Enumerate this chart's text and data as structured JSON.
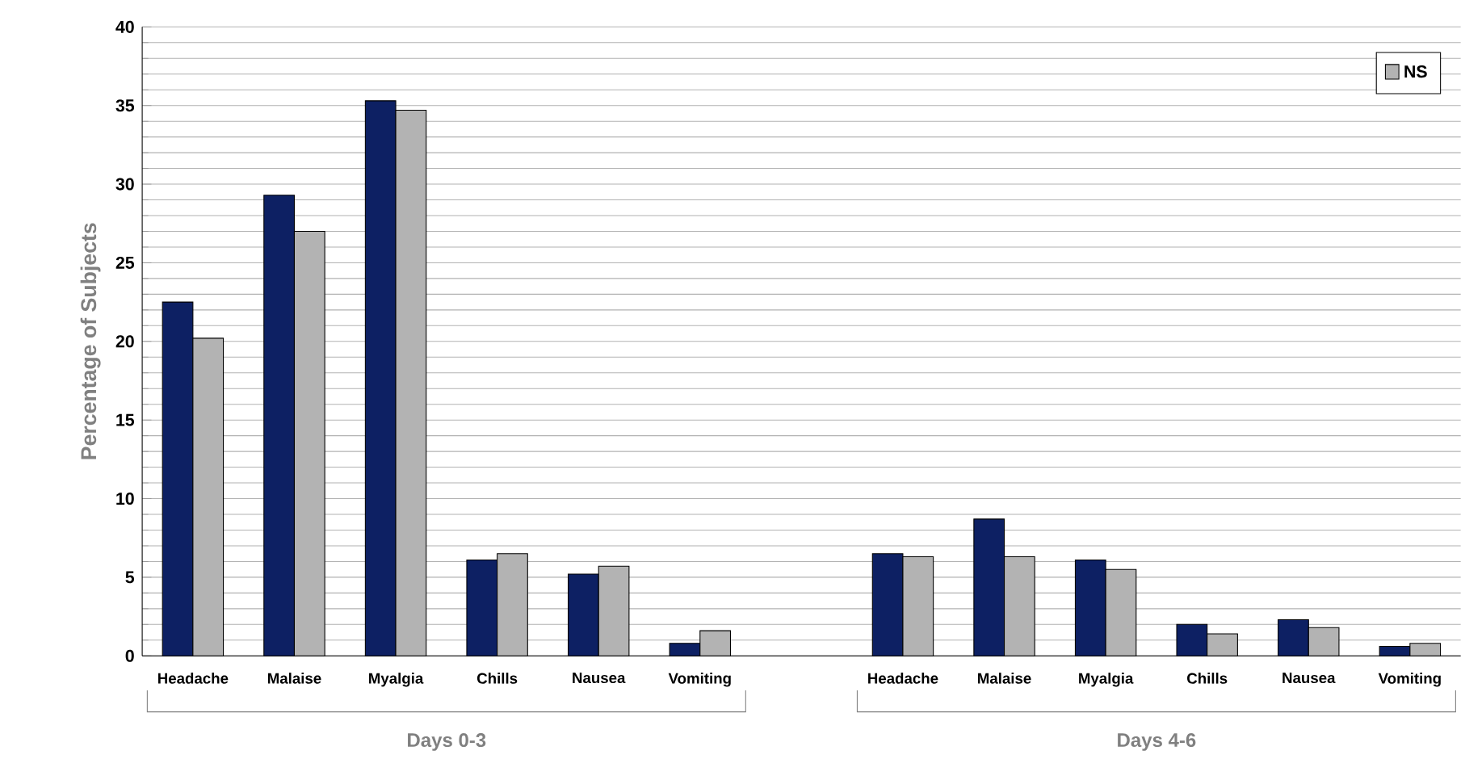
{
  "chart_data": {
    "type": "bar",
    "ylabel": "Percentage of Subjects",
    "categories": [
      "Headache",
      "Malaise",
      "Myalgia",
      "Chills",
      "Nausea",
      "Vomiting",
      null,
      "Headache",
      "Malaise",
      "Myalgia",
      "Chills",
      "Nausea",
      "Vomiting"
    ],
    "series": [
      {
        "color": "#0d2063",
        "values": [
          22.5,
          29.3,
          35.3,
          6.1,
          5.2,
          0.8,
          null,
          6.5,
          8.7,
          6.1,
          2.0,
          2.3,
          0.6
        ]
      },
      {
        "name": "NS",
        "color": "#b3b3b3",
        "values": [
          20.2,
          27.0,
          34.7,
          6.5,
          5.7,
          1.6,
          null,
          6.3,
          6.3,
          5.5,
          1.4,
          1.8,
          0.8
        ]
      }
    ],
    "ylim": [
      0,
      40
    ],
    "yticks": [
      0,
      5,
      10,
      15,
      20,
      25,
      30,
      35,
      40
    ],
    "grid": "y",
    "legend": "top right",
    "annotations": [
      "Days 0-3",
      "Days 4-6"
    ]
  }
}
